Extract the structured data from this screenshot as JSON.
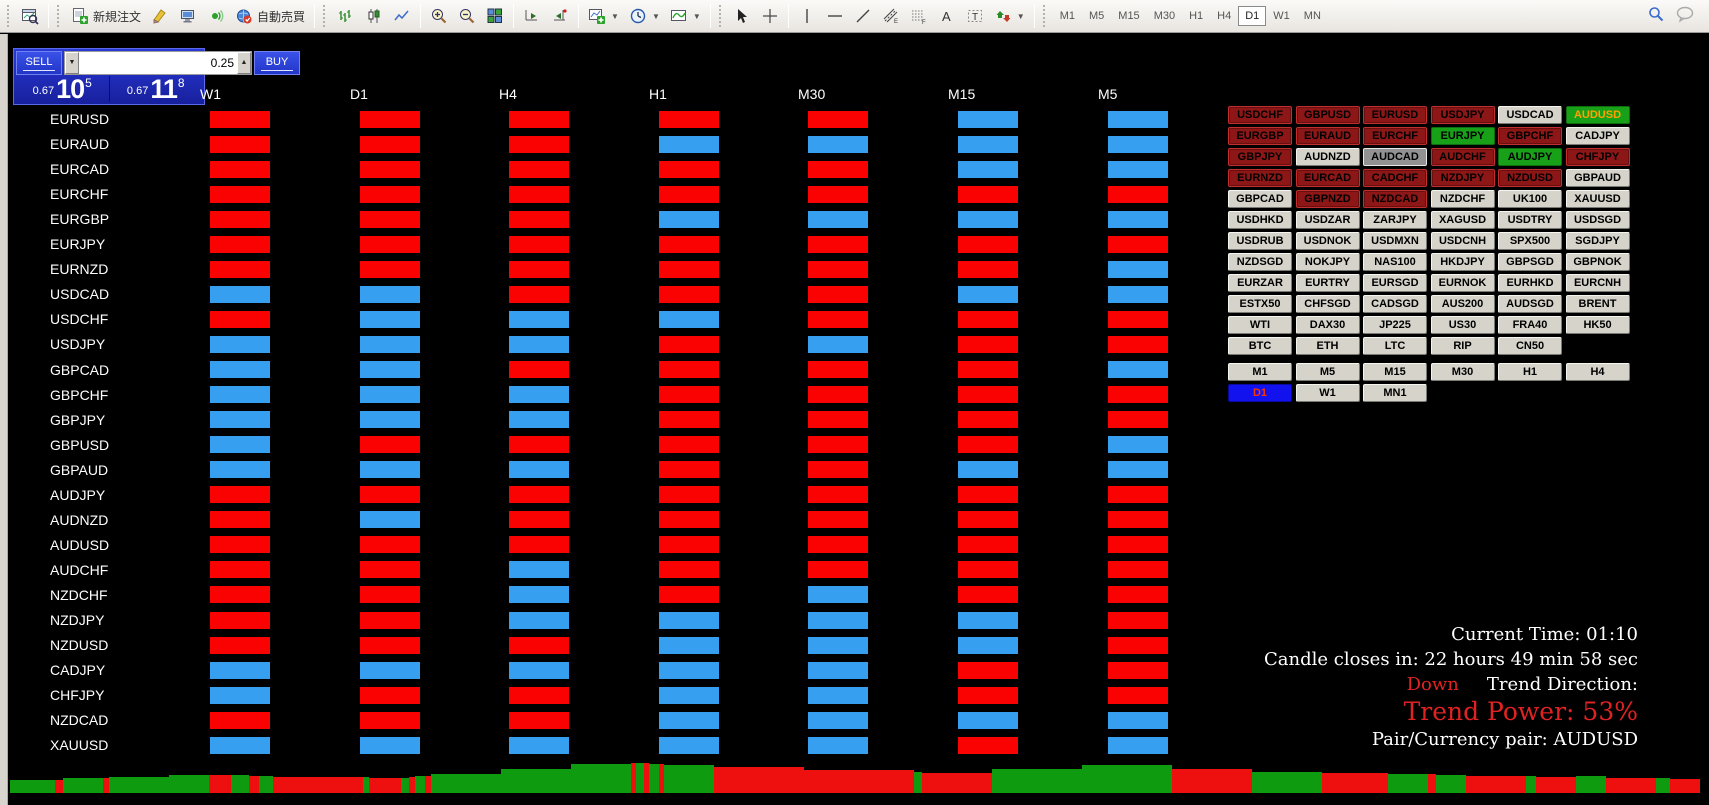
{
  "toolbar": {
    "new_order_label": "新規注文",
    "auto_trading_label": "自動売買",
    "timeframes": [
      "M1",
      "M5",
      "M15",
      "M30",
      "H1",
      "H4",
      "D1",
      "W1",
      "MN"
    ],
    "active_timeframe": "D1"
  },
  "trade_panel": {
    "sell_label": "SELL",
    "buy_label": "BUY",
    "volume": "0.25",
    "sell_price": {
      "small": "0.67",
      "big": "10",
      "sup": "5"
    },
    "buy_price": {
      "small": "0.67",
      "big": "11",
      "sup": "8"
    }
  },
  "matrix": {
    "timeframe_headers": [
      "W1",
      "D1",
      "H4",
      "H1",
      "M30",
      "M15",
      "M5"
    ],
    "legend": {
      "R": "#fb0202",
      "B": "#379fef"
    },
    "pairs": [
      "EURUSD",
      "EURAUD",
      "EURCAD",
      "EURCHF",
      "EURGBP",
      "EURJPY",
      "EURNZD",
      "USDCAD",
      "USDCHF",
      "USDJPY",
      "GBPCAD",
      "GBPCHF",
      "GBPJPY",
      "GBPUSD",
      "GBPAUD",
      "AUDJPY",
      "AUDNZD",
      "AUDUSD",
      "AUDCHF",
      "NZDCHF",
      "NZDJPY",
      "NZDUSD",
      "CADJPY",
      "CHFJPY",
      "NZDCAD",
      "XAUUSD"
    ],
    "cells": [
      "RRRRRBB",
      "RRRBBBB",
      "RRRRRBB",
      "RRRRRRR",
      "RRRBBBB",
      "RRRRRRR",
      "RRRRRRB",
      "BBRRRBB",
      "RBBBRRR",
      "BBBRBRR",
      "BBRRRRB",
      "BBBRRRR",
      "BBBRRRR",
      "BRRRRRB",
      "BBBRRBB",
      "RRRRRRR",
      "RBRRRRR",
      "RRRRRRR",
      "RRBRRRR",
      "RRBRBRR",
      "RRBBBBR",
      "RRRBBBR",
      "BBBBBRR",
      "BRRBBRR",
      "RRRBBBB",
      "BBBBBRB"
    ]
  },
  "symbol_panel": {
    "rows": [
      [
        {
          "l": "USDCHF",
          "s": "red"
        },
        {
          "l": "GBPUSD",
          "s": "red"
        },
        {
          "l": "EURUSD",
          "s": "red"
        },
        {
          "l": "USDJPY",
          "s": "red"
        },
        {
          "l": "USDCAD",
          "s": "gray"
        },
        {
          "l": "AUDUSD",
          "s": "green_orange"
        }
      ],
      [
        {
          "l": "EURGBP",
          "s": "red"
        },
        {
          "l": "EURAUD",
          "s": "red"
        },
        {
          "l": "EURCHF",
          "s": "red"
        },
        {
          "l": "EURJPY",
          "s": "green"
        },
        {
          "l": "GBPCHF",
          "s": "red"
        },
        {
          "l": "CADJPY",
          "s": "gray"
        }
      ],
      [
        {
          "l": "GBPJPY",
          "s": "red"
        },
        {
          "l": "AUDNZD",
          "s": "gray"
        },
        {
          "l": "AUDCAD",
          "s": "selected"
        },
        {
          "l": "AUDCHF",
          "s": "red"
        },
        {
          "l": "AUDJPY",
          "s": "green"
        },
        {
          "l": "CHFJPY",
          "s": "red"
        }
      ],
      [
        {
          "l": "EURNZD",
          "s": "red"
        },
        {
          "l": "EURCAD",
          "s": "red"
        },
        {
          "l": "CADCHF",
          "s": "red"
        },
        {
          "l": "NZDJPY",
          "s": "red"
        },
        {
          "l": "NZDUSD",
          "s": "red"
        },
        {
          "l": "GBPAUD",
          "s": "gray"
        }
      ],
      [
        {
          "l": "GBPCAD",
          "s": "gray"
        },
        {
          "l": "GBPNZD",
          "s": "red"
        },
        {
          "l": "NZDCAD",
          "s": "red"
        },
        {
          "l": "NZDCHF",
          "s": "gray"
        },
        {
          "l": "UK100",
          "s": "gray"
        },
        {
          "l": "XAUUSD",
          "s": "gray"
        }
      ],
      [
        {
          "l": "USDHKD",
          "s": "gray"
        },
        {
          "l": "USDZAR",
          "s": "gray"
        },
        {
          "l": "ZARJPY",
          "s": "gray"
        },
        {
          "l": "XAGUSD",
          "s": "gray"
        },
        {
          "l": "USDTRY",
          "s": "gray"
        },
        {
          "l": "USDSGD",
          "s": "gray"
        }
      ],
      [
        {
          "l": "USDRUB",
          "s": "gray"
        },
        {
          "l": "USDNOK",
          "s": "gray"
        },
        {
          "l": "USDMXN",
          "s": "gray"
        },
        {
          "l": "USDCNH",
          "s": "gray"
        },
        {
          "l": "SPX500",
          "s": "gray"
        },
        {
          "l": "SGDJPY",
          "s": "gray"
        }
      ],
      [
        {
          "l": "NZDSGD",
          "s": "gray"
        },
        {
          "l": "NOKJPY",
          "s": "gray"
        },
        {
          "l": "NAS100",
          "s": "gray"
        },
        {
          "l": "HKDJPY",
          "s": "gray"
        },
        {
          "l": "GBPSGD",
          "s": "gray"
        },
        {
          "l": "GBPNOK",
          "s": "gray"
        }
      ],
      [
        {
          "l": "EURZAR",
          "s": "gray"
        },
        {
          "l": "EURTRY",
          "s": "gray"
        },
        {
          "l": "EURSGD",
          "s": "gray"
        },
        {
          "l": "EURNOK",
          "s": "gray"
        },
        {
          "l": "EURHKD",
          "s": "gray"
        },
        {
          "l": "EURCNH",
          "s": "gray"
        }
      ],
      [
        {
          "l": "ESTX50",
          "s": "gray"
        },
        {
          "l": "CHFSGD",
          "s": "gray"
        },
        {
          "l": "CADSGD",
          "s": "gray"
        },
        {
          "l": "AUS200",
          "s": "gray"
        },
        {
          "l": "AUDSGD",
          "s": "gray"
        },
        {
          "l": "BRENT",
          "s": "gray"
        }
      ],
      [
        {
          "l": "WTI",
          "s": "gray"
        },
        {
          "l": "DAX30",
          "s": "gray"
        },
        {
          "l": "JP225",
          "s": "gray"
        },
        {
          "l": "US30",
          "s": "gray"
        },
        {
          "l": "FRA40",
          "s": "gray"
        },
        {
          "l": "HK50",
          "s": "gray"
        }
      ],
      [
        {
          "l": "BTC",
          "s": "gray"
        },
        {
          "l": "ETH",
          "s": "gray"
        },
        {
          "l": "LTC",
          "s": "gray"
        },
        {
          "l": "RIP",
          "s": "gray"
        },
        {
          "l": "CN50",
          "s": "gray"
        }
      ]
    ],
    "tf_rows": [
      [
        {
          "l": "M1",
          "s": "gray"
        },
        {
          "l": "M5",
          "s": "gray"
        },
        {
          "l": "M15",
          "s": "gray"
        },
        {
          "l": "M30",
          "s": "gray"
        },
        {
          "l": "H1",
          "s": "gray"
        },
        {
          "l": "H4",
          "s": "gray"
        }
      ],
      [
        {
          "l": "D1",
          "s": "tf-active"
        },
        {
          "l": "W1",
          "s": "gray"
        },
        {
          "l": "MN1",
          "s": "gray"
        }
      ]
    ]
  },
  "info": {
    "current_time": "Current Time: 01:10",
    "candle_closes": "Candle closes in: 22 hours 49 min 58 sec",
    "trend_direction_value": "Down",
    "trend_direction_label": "Trend Direction:",
    "trend_power": "Trend Power: 53%",
    "pair_line": "Pair/Currency pair: AUDUSD"
  },
  "strip": {
    "segments": [
      [
        45,
        13,
        "g"
      ],
      [
        8,
        13,
        "r"
      ],
      [
        40,
        15,
        "g"
      ],
      [
        6,
        15,
        "r"
      ],
      [
        60,
        16,
        "g"
      ],
      [
        40,
        18,
        "g"
      ],
      [
        22,
        18,
        "r"
      ],
      [
        18,
        18,
        "g"
      ],
      [
        10,
        17,
        "r"
      ],
      [
        14,
        17,
        "g"
      ],
      [
        90,
        16,
        "r"
      ],
      [
        6,
        16,
        "g"
      ],
      [
        32,
        15,
        "r"
      ],
      [
        8,
        15,
        "g"
      ],
      [
        6,
        16,
        "r"
      ],
      [
        10,
        17,
        "g"
      ],
      [
        6,
        17,
        "r"
      ],
      [
        70,
        19,
        "g"
      ],
      [
        70,
        24,
        "g"
      ],
      [
        60,
        29,
        "g"
      ],
      [
        5,
        30,
        "r"
      ],
      [
        8,
        30,
        "g"
      ],
      [
        5,
        30,
        "r"
      ],
      [
        10,
        29,
        "g"
      ],
      [
        5,
        29,
        "r"
      ],
      [
        50,
        28,
        "g"
      ],
      [
        90,
        26,
        "r"
      ],
      [
        110,
        23,
        "r"
      ],
      [
        8,
        21,
        "g"
      ],
      [
        70,
        20,
        "r"
      ],
      [
        90,
        24,
        "g"
      ],
      [
        90,
        28,
        "g"
      ],
      [
        80,
        24,
        "r"
      ],
      [
        70,
        21,
        "g"
      ],
      [
        66,
        20,
        "r"
      ],
      [
        40,
        19,
        "g"
      ],
      [
        8,
        19,
        "r"
      ],
      [
        30,
        18,
        "g"
      ],
      [
        60,
        17,
        "r"
      ],
      [
        10,
        17,
        "g"
      ],
      [
        40,
        16,
        "r"
      ],
      [
        30,
        17,
        "g"
      ],
      [
        50,
        15,
        "r"
      ],
      [
        14,
        15,
        "g"
      ],
      [
        30,
        14,
        "r"
      ]
    ]
  }
}
